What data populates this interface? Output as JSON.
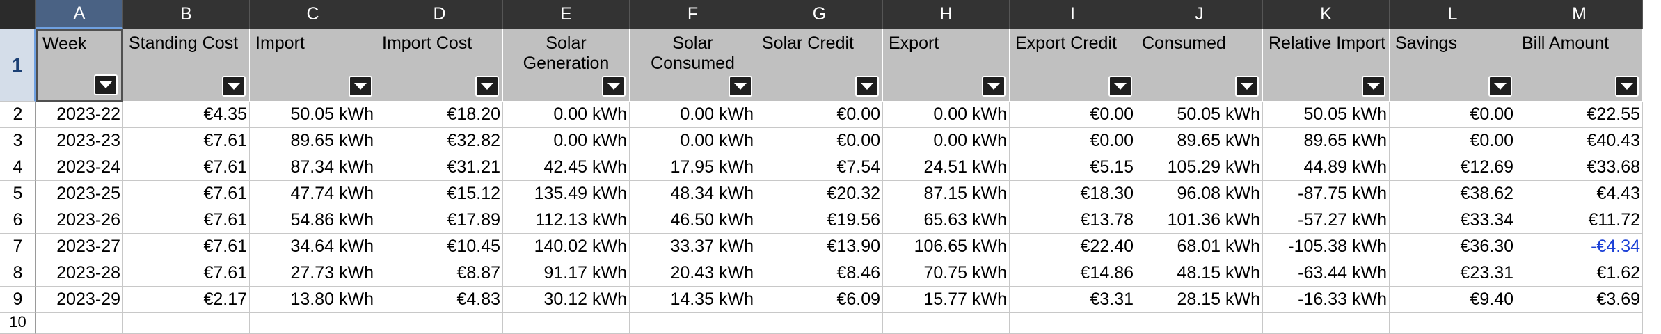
{
  "columns": [
    {
      "letter": "A",
      "width": 125,
      "header": "Week"
    },
    {
      "letter": "B",
      "width": 182,
      "header": "Standing Cost"
    },
    {
      "letter": "C",
      "width": 182,
      "header": "Import"
    },
    {
      "letter": "D",
      "width": 182,
      "header": "Import Cost"
    },
    {
      "letter": "E",
      "width": 182,
      "header": "Solar\nGeneration"
    },
    {
      "letter": "F",
      "width": 182,
      "header": "Solar\nConsumed"
    },
    {
      "letter": "G",
      "width": 182,
      "header": "Solar Credit"
    },
    {
      "letter": "H",
      "width": 182,
      "header": "Export"
    },
    {
      "letter": "I",
      "width": 182,
      "header": "Export Credit"
    },
    {
      "letter": "J",
      "width": 182,
      "header": "Consumed"
    },
    {
      "letter": "K",
      "width": 182,
      "header": "Relative Import"
    },
    {
      "letter": "L",
      "width": 182,
      "header": "Savings"
    },
    {
      "letter": "M",
      "width": 182,
      "header": "Bill Amount"
    }
  ],
  "header_row_number": "1",
  "rows": [
    {
      "num": "2",
      "cells": [
        "2023-22",
        "€4.35",
        "50.05 kWh",
        "€18.20",
        "0.00 kWh",
        "0.00 kWh",
        "€0.00",
        "0.00 kWh",
        "€0.00",
        "50.05 kWh",
        "50.05 kWh",
        "€0.00",
        "€22.55"
      ]
    },
    {
      "num": "3",
      "cells": [
        "2023-23",
        "€7.61",
        "89.65 kWh",
        "€32.82",
        "0.00 kWh",
        "0.00 kWh",
        "€0.00",
        "0.00 kWh",
        "€0.00",
        "89.65 kWh",
        "89.65 kWh",
        "€0.00",
        "€40.43"
      ]
    },
    {
      "num": "4",
      "cells": [
        "2023-24",
        "€7.61",
        "87.34 kWh",
        "€31.21",
        "42.45 kWh",
        "17.95 kWh",
        "€7.54",
        "24.51 kWh",
        "€5.15",
        "105.29 kWh",
        "44.89 kWh",
        "€12.69",
        "€33.68"
      ]
    },
    {
      "num": "5",
      "cells": [
        "2023-25",
        "€7.61",
        "47.74 kWh",
        "€15.12",
        "135.49 kWh",
        "48.34 kWh",
        "€20.32",
        "87.15 kWh",
        "€18.30",
        "96.08 kWh",
        "-87.75 kWh",
        "€38.62",
        "€4.43"
      ]
    },
    {
      "num": "6",
      "cells": [
        "2023-26",
        "€7.61",
        "54.86 kWh",
        "€17.89",
        "112.13 kWh",
        "46.50 kWh",
        "€19.56",
        "65.63 kWh",
        "€13.78",
        "101.36 kWh",
        "-57.27 kWh",
        "€33.34",
        "€11.72"
      ]
    },
    {
      "num": "7",
      "cells": [
        "2023-27",
        "€7.61",
        "34.64 kWh",
        "€10.45",
        "140.02 kWh",
        "33.37 kWh",
        "€13.90",
        "106.65 kWh",
        "€22.40",
        "68.01 kWh",
        "-105.38 kWh",
        "€36.30",
        "-€4.34"
      ]
    },
    {
      "num": "8",
      "cells": [
        "2023-28",
        "€7.61",
        "27.73 kWh",
        "€8.87",
        "91.17 kWh",
        "20.43 kWh",
        "€8.46",
        "70.75 kWh",
        "€14.86",
        "48.15 kWh",
        "-63.44 kWh",
        "€23.31",
        "€1.62"
      ]
    },
    {
      "num": "9",
      "cells": [
        "2023-29",
        "€2.17",
        "13.80 kWh",
        "€4.83",
        "30.12 kWh",
        "14.35 kWh",
        "€6.09",
        "15.77 kWh",
        "€3.31",
        "28.15 kWh",
        "-16.33 kWh",
        "€9.40",
        "€3.69"
      ]
    }
  ],
  "partial_row_number": "10",
  "colors": {
    "negative_value": "#1a3fd6",
    "header_fill": "#c0c0c0",
    "active_column": "#4a6284"
  },
  "icons": {
    "filter_button": "chevron-down-icon"
  }
}
